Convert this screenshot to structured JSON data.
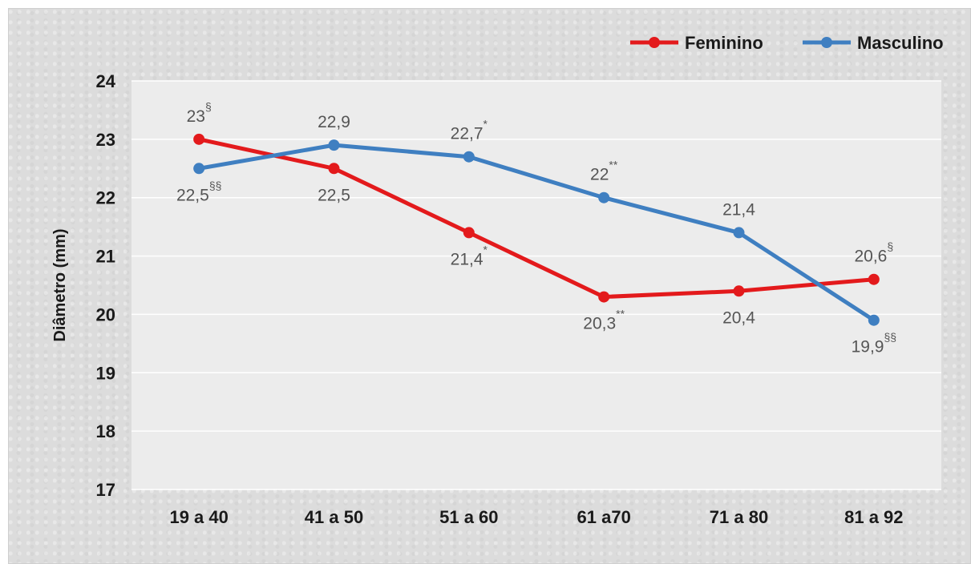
{
  "chart_data": {
    "type": "line",
    "ylabel": "Diâmetro (mm)",
    "xlabel": "",
    "title": "",
    "ylim": [
      17,
      24
    ],
    "yticks": [
      "17",
      "18",
      "19",
      "20",
      "21",
      "22",
      "23",
      "24"
    ],
    "categories": [
      "19 a 40",
      "41 a 50",
      "51 a 60",
      "61 a70",
      "71 a 80",
      "81 a 92"
    ],
    "grid": true,
    "legend_position": "top-right",
    "series": [
      {
        "name": "Feminino",
        "color": "#e31a1c",
        "values": [
          23.0,
          22.5,
          21.4,
          20.3,
          20.4,
          20.6
        ],
        "labels": [
          "23",
          "22,5",
          "21,4",
          "20,3",
          "20,4",
          "20,6"
        ],
        "marks": [
          "§",
          "",
          "*",
          "**",
          "",
          "§"
        ],
        "label_pos": [
          "above",
          "below",
          "below",
          "below",
          "below",
          "above"
        ]
      },
      {
        "name": "Masculino",
        "color": "#3f7fc1",
        "values": [
          22.5,
          22.9,
          22.7,
          22.0,
          21.4,
          19.9
        ],
        "labels": [
          "22,5",
          "22,9",
          "22,7",
          "22",
          "21,4",
          "19,9"
        ],
        "marks": [
          "§§",
          "",
          "*",
          "**",
          "",
          "§§"
        ],
        "label_pos": [
          "below",
          "above",
          "above",
          "above",
          "above",
          "below"
        ]
      }
    ]
  }
}
